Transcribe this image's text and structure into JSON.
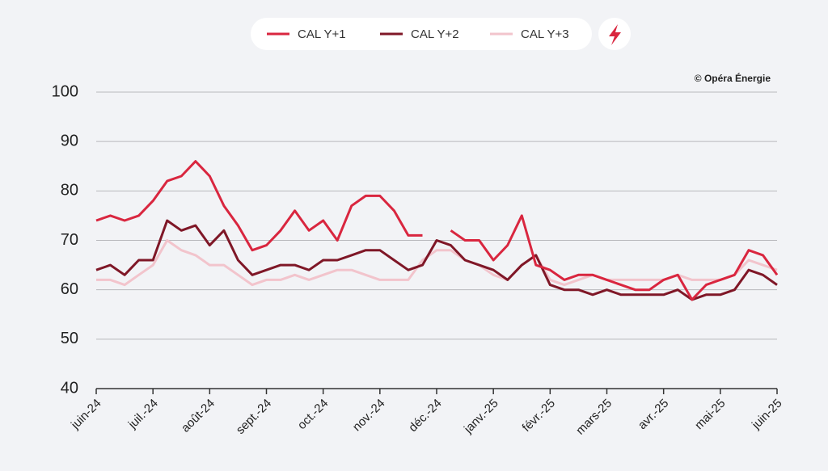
{
  "chart_data": {
    "type": "line",
    "annotation": "© Opéra Énergie",
    "xlim": [
      0,
      12
    ],
    "xticks": [
      {
        "value": 0,
        "label": "juin-24"
      },
      {
        "value": 1,
        "label": "juil.-24"
      },
      {
        "value": 2,
        "label": "août-24"
      },
      {
        "value": 3,
        "label": "sept.-24"
      },
      {
        "value": 4,
        "label": "oct.-24"
      },
      {
        "value": 5,
        "label": "nov.-24"
      },
      {
        "value": 6,
        "label": "déc.-24"
      },
      {
        "value": 7,
        "label": "janv.-25"
      },
      {
        "value": 8,
        "label": "févr.-25"
      },
      {
        "value": 9,
        "label": "mars-25"
      },
      {
        "value": 10,
        "label": "avr.-25"
      },
      {
        "value": 11,
        "label": "mai-25"
      },
      {
        "value": 12,
        "label": "juin-25"
      }
    ],
    "ylim": [
      40,
      100
    ],
    "yticks": [
      40,
      50,
      60,
      70,
      80,
      90,
      100
    ],
    "grid": true,
    "x": [
      0,
      0.25,
      0.5,
      0.75,
      1,
      1.25,
      1.5,
      1.75,
      2,
      2.25,
      2.5,
      2.75,
      3,
      3.25,
      3.5,
      3.75,
      4,
      4.25,
      4.5,
      4.75,
      5,
      5.25,
      5.5,
      5.75,
      6,
      6.25,
      6.5,
      6.75,
      7,
      7.25,
      7.5,
      7.75,
      8,
      8.25,
      8.5,
      8.75,
      9,
      9.25,
      9.5,
      9.75,
      10,
      10.25,
      10.5,
      10.75,
      11,
      11.25,
      11.5,
      11.75,
      12
    ],
    "series": [
      {
        "name": "CAL Y+1",
        "color": "#d9263f",
        "values": [
          74,
          75,
          74,
          75,
          78,
          82,
          83,
          86,
          83,
          77,
          73,
          68,
          69,
          72,
          76,
          72,
          74,
          70,
          77,
          79,
          79,
          76,
          71,
          71,
          null,
          72,
          70,
          70,
          66,
          69,
          75,
          65,
          64,
          62,
          63,
          63,
          62,
          61,
          60,
          60,
          62,
          63,
          58,
          61,
          62,
          63,
          68,
          67,
          63
        ]
      },
      {
        "name": "CAL Y+2",
        "color": "#7f1727",
        "values": [
          64,
          65,
          63,
          66,
          66,
          74,
          72,
          73,
          69,
          72,
          66,
          63,
          64,
          65,
          65,
          64,
          66,
          66,
          67,
          68,
          68,
          66,
          64,
          65,
          70,
          69,
          66,
          65,
          64,
          62,
          65,
          67,
          61,
          60,
          60,
          59,
          60,
          59,
          59,
          59,
          59,
          60,
          58,
          59,
          59,
          60,
          64,
          63,
          61
        ]
      },
      {
        "name": "CAL Y+3",
        "color": "#f2c4cc",
        "values": [
          62,
          62,
          61,
          63,
          65,
          70,
          68,
          67,
          65,
          65,
          63,
          61,
          62,
          62,
          63,
          62,
          63,
          64,
          64,
          63,
          62,
          62,
          62,
          66,
          68,
          68,
          66,
          65,
          63,
          62,
          65,
          67,
          62,
          61,
          62,
          63,
          62,
          62,
          62,
          62,
          62,
          63,
          62,
          62,
          62,
          63,
          66,
          65,
          64
        ]
      }
    ]
  }
}
